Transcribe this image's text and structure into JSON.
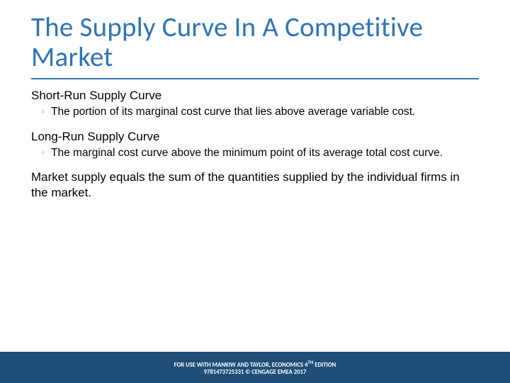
{
  "colors": {
    "title": "#2e75b6",
    "rule": "#2e75b6",
    "footer_bg": "#1f4e79",
    "footer_text": "#ffffff",
    "bullet_glyph_color": "#9aa4ae"
  },
  "title": "The Supply Curve In A Competitive Market",
  "sections": [
    {
      "heading": "Short-Run Supply Curve",
      "bullet_glyph": "◦",
      "bullet_text": "The portion of its marginal cost curve that lies above average variable cost."
    },
    {
      "heading": "Long-Run Supply Curve",
      "bullet_glyph": "◦",
      "bullet_text": "The marginal cost curve above the minimum point of its average total cost curve."
    }
  ],
  "body": "Market supply equals the sum of the quantities supplied by the individual firms in the market.",
  "footer": {
    "line1_pre": "FOR USE WITH MANKIW AND TAYLOR, ECONOMICS 4",
    "line1_sup": "TH",
    "line1_post": " EDITION",
    "line2": "9781473725331 © CENGAGE EMEA 2017"
  }
}
